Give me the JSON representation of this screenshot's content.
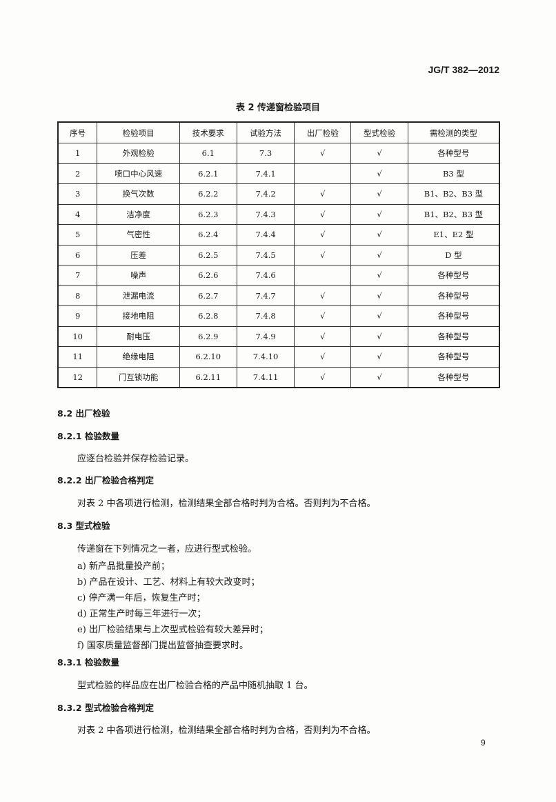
{
  "header": {
    "standard_code": "JG/T 382—2012"
  },
  "table": {
    "caption": "表 2  传递窗检验项目",
    "columns": [
      "序号",
      "检验项目",
      "技术要求",
      "试验方法",
      "出厂检验",
      "型式检验",
      "需检测的类型"
    ],
    "rows": [
      [
        "1",
        "外观检验",
        "6.1",
        "7.3",
        "√",
        "√",
        "各种型号"
      ],
      [
        "2",
        "喷口中心风速",
        "6.2.1",
        "7.4.1",
        "",
        "√",
        "B3 型"
      ],
      [
        "3",
        "换气次数",
        "6.2.2",
        "7.4.2",
        "√",
        "√",
        "B1、B2、B3 型"
      ],
      [
        "4",
        "洁净度",
        "6.2.3",
        "7.4.3",
        "√",
        "√",
        "B1、B2、B3 型"
      ],
      [
        "5",
        "气密性",
        "6.2.4",
        "7.4.4",
        "√",
        "√",
        "E1、E2 型"
      ],
      [
        "6",
        "压差",
        "6.2.5",
        "7.4.5",
        "√",
        "√",
        "D 型"
      ],
      [
        "7",
        "噪声",
        "6.2.6",
        "7.4.6",
        "",
        "√",
        "各种型号"
      ],
      [
        "8",
        "泄漏电流",
        "6.2.7",
        "7.4.7",
        "√",
        "√",
        "各种型号"
      ],
      [
        "9",
        "接地电阻",
        "6.2.8",
        "7.4.8",
        "√",
        "√",
        "各种型号"
      ],
      [
        "10",
        "耐电压",
        "6.2.9",
        "7.4.9",
        "√",
        "√",
        "各种型号"
      ],
      [
        "11",
        "绝缘电阻",
        "6.2.10",
        "7.4.10",
        "√",
        "√",
        "各种型号"
      ],
      [
        "12",
        "门互锁功能",
        "6.2.11",
        "7.4.11",
        "√",
        "√",
        "各种型号"
      ]
    ]
  },
  "body": {
    "s82": "8.2  出厂检验",
    "s821": "8.2.1  检验数量",
    "p821": "应逐台检验并保存检验记录。",
    "s822": "8.2.2  出厂检验合格判定",
    "p822": "对表 2 中各项进行检测，检测结果全部合格时判为合格。否则判为不合格。",
    "s83": "8.3  型式检验",
    "p83": "传递窗在下列情况之一者，应进行型式检验。",
    "items": [
      "a)  新产品批量投产前；",
      "b)  产品在设计、工艺、材料上有较大改变时；",
      "c)  停产满一年后，恢复生产时；",
      "d)  正常生产时每三年进行一次；",
      "e)  出厂检验结果与上次型式检验有较大差异时；",
      "f)  国家质量监督部门提出监督抽查要求时。"
    ],
    "s831": "8.3.1  检验数量",
    "p831": "型式检验的样品应在出厂检验合格的产品中随机抽取 1 台。",
    "s832": "8.3.2  型式检验合格判定",
    "p832": "对表 2 中各项进行检测，检测结果全部合格时判为合格，否则判为不合格。"
  },
  "footer": {
    "page_number": "9"
  }
}
